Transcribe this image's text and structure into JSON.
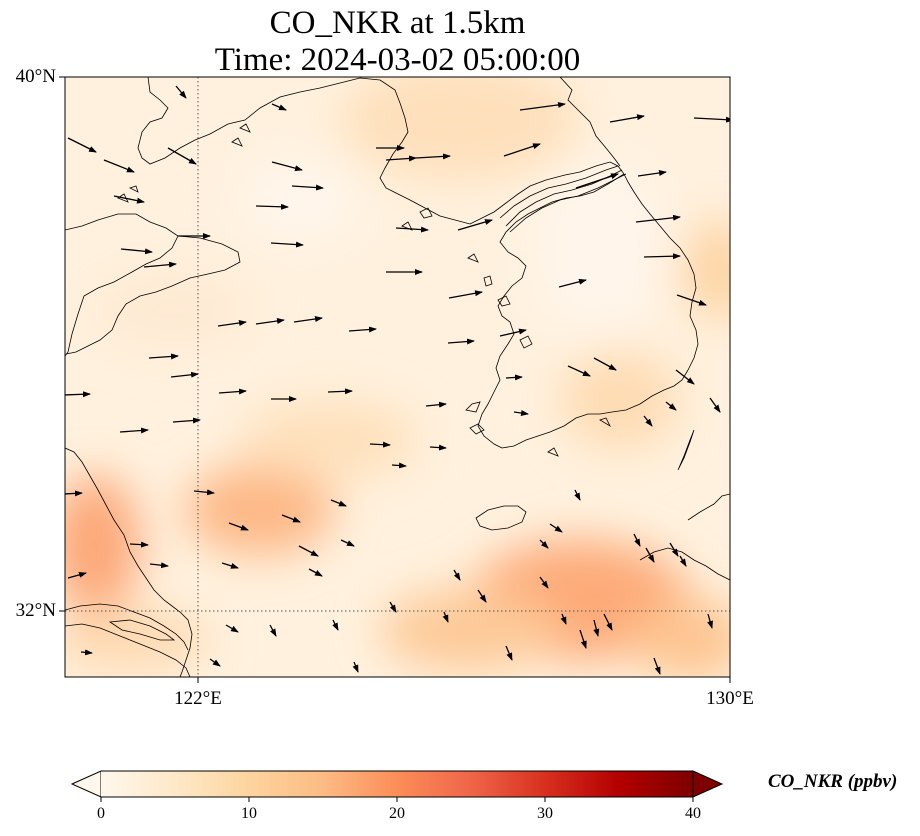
{
  "title": {
    "line1": "CO_NKR at 1.5km",
    "line2": "Time: 2024-03-02 05:00:00"
  },
  "map": {
    "lat_labels": [
      "40°N",
      "32°N"
    ],
    "lon_labels": [
      "122°E",
      "130°E"
    ],
    "gridlines": "dotted",
    "coastlines": true,
    "wind_vectors": true
  },
  "colorbar": {
    "label": "CO_NKR (ppbv)",
    "ticks": [
      "0",
      "10",
      "20",
      "30",
      "40"
    ],
    "colormap": "OrRd",
    "colors": [
      "#fff7ec",
      "#fee8c8",
      "#fdd49e",
      "#fdbb84",
      "#fc8d59",
      "#ef6548",
      "#d7301f",
      "#b30000",
      "#7f0000"
    ],
    "extend": "both"
  }
}
